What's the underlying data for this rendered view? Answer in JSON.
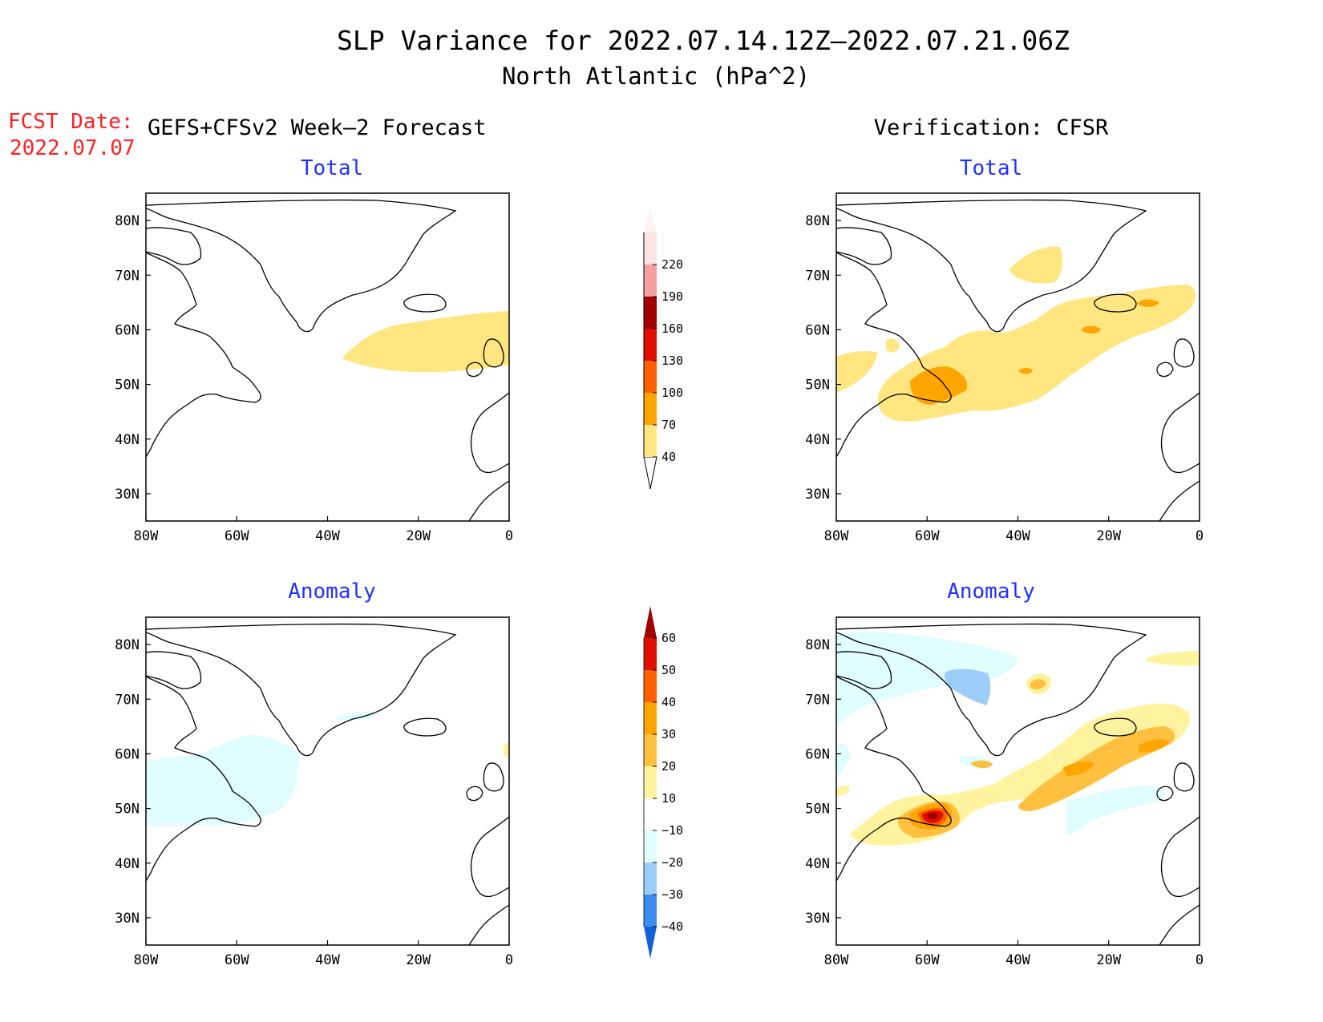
{
  "title": {
    "line1": "SLP Variance for 2022.07.14.12Z–2022.07.21.06Z",
    "line2": "North Atlantic (hPa^2)"
  },
  "fcst": {
    "label": "FCST Date:",
    "date": "2022.07.07"
  },
  "columns": {
    "left": "GEFS+CFSv2 Week–2 Forecast",
    "right": "Verification: CFSR"
  },
  "panels": [
    {
      "id": "fcst-total",
      "subtitle": "Total"
    },
    {
      "id": "verif-total",
      "subtitle": "Total"
    },
    {
      "id": "fcst-anomaly",
      "subtitle": "Anomaly"
    },
    {
      "id": "verif-anomaly",
      "subtitle": "Anomaly"
    }
  ],
  "axes": {
    "x_ticks": [
      "80W",
      "60W",
      "40W",
      "20W",
      "0"
    ],
    "y_ticks": [
      "80N",
      "70N",
      "60N",
      "50N",
      "40N",
      "30N"
    ],
    "lon_range": [
      -80,
      0
    ],
    "lat_range": [
      25,
      85
    ]
  },
  "colorbars": {
    "total": {
      "labels": [
        "40",
        "70",
        "100",
        "130",
        "160",
        "190",
        "220"
      ],
      "colors": [
        "#ffe680",
        "#ffa500",
        "#ff6000",
        "#e01000",
        "#a00000",
        "#f4a0a0",
        "#fce4e4"
      ],
      "extend_top_color": "#fff2f2"
    },
    "anomaly": {
      "labels": [
        "60",
        "50",
        "40",
        "30",
        "20",
        "10",
        "−10",
        "−20",
        "−30",
        "−40"
      ],
      "colors_top_to_bottom": [
        "#a00000",
        "#e01000",
        "#ff6000",
        "#ffa500",
        "#ffc040",
        "#fff3a0",
        "#ffffff",
        "#e0fdff",
        "#9ccdf8",
        "#3c8cf0",
        "#1560d8"
      ]
    }
  },
  "colors": {
    "title": "#000000",
    "fcst": "#ff2020",
    "subtitle": "#2030ff",
    "coast": "#000000"
  }
}
